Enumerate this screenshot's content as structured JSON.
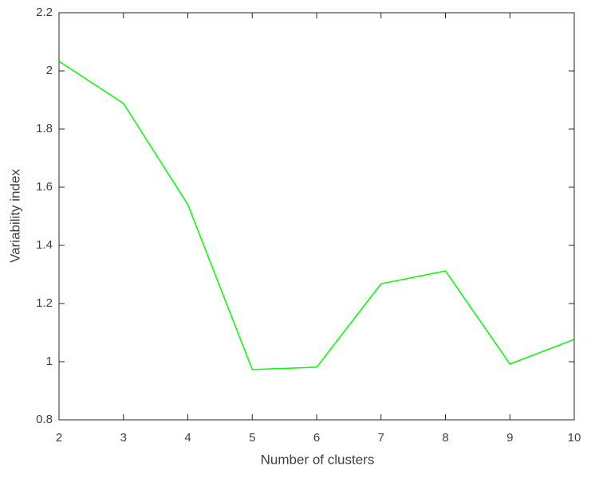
{
  "chart_data": {
    "type": "line",
    "xlabel": "Number of clusters",
    "ylabel": "Variability index",
    "x": [
      2,
      3,
      4,
      5,
      6,
      7,
      8,
      9,
      10
    ],
    "values": [
      2.033,
      1.888,
      1.54,
      0.973,
      0.981,
      1.268,
      1.312,
      0.992,
      1.077
    ],
    "color": "#00ff00",
    "xlim": [
      2,
      10
    ],
    "xticks": [
      2,
      3,
      4,
      5,
      6,
      7,
      8,
      9,
      10
    ],
    "ylim": [
      0.8,
      2.2
    ],
    "yticks": [
      0.8,
      1,
      1.2,
      1.4,
      1.6,
      1.8,
      2,
      2.2
    ],
    "grid": false
  }
}
